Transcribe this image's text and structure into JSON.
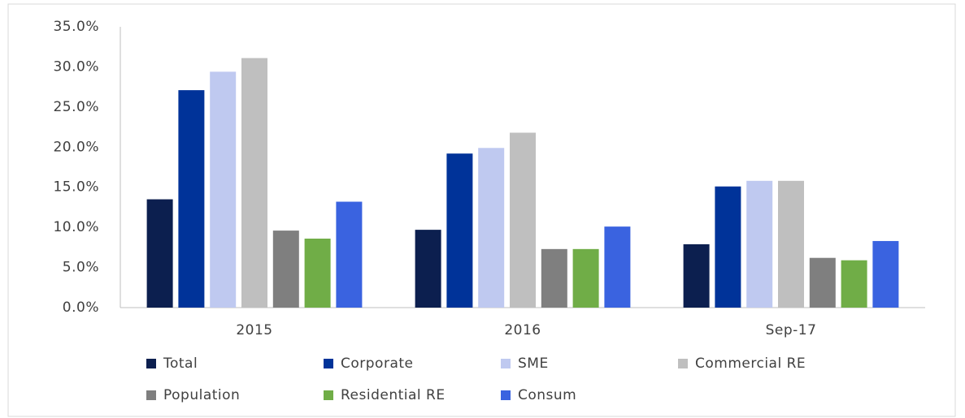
{
  "chart_data": {
    "type": "bar",
    "categories": [
      "2015",
      "2016",
      "Sep-17"
    ],
    "series": [
      {
        "name": "Total",
        "color": "#0c1f4f",
        "values": [
          13.5,
          9.7,
          7.9
        ]
      },
      {
        "name": "Corporate",
        "color": "#003399",
        "values": [
          27.1,
          19.2,
          15.1
        ]
      },
      {
        "name": "SME",
        "color": "#bfc9f0",
        "values": [
          29.4,
          19.9,
          15.8
        ]
      },
      {
        "name": "Commercial RE",
        "color": "#bfbfbf",
        "values": [
          31.1,
          21.8,
          15.8
        ]
      },
      {
        "name": "Population",
        "color": "#7f7f7f",
        "values": [
          9.6,
          7.3,
          6.2
        ]
      },
      {
        "name": "Residential RE",
        "color": "#70ad47",
        "values": [
          8.6,
          7.3,
          5.9
        ]
      },
      {
        "name": "Consum",
        "color": "#3a63e0",
        "values": [
          13.2,
          10.1,
          8.3
        ]
      }
    ],
    "ylim": [
      0,
      35
    ],
    "yticks": [
      {
        "value": 0,
        "label": "0.0%"
      },
      {
        "value": 5,
        "label": "5.0%"
      },
      {
        "value": 10,
        "label": "10.0%"
      },
      {
        "value": 15,
        "label": "15.0%"
      },
      {
        "value": 20,
        "label": "20.0%"
      },
      {
        "value": 25,
        "label": "25.0%"
      },
      {
        "value": 30,
        "label": "30.0%"
      },
      {
        "value": 35,
        "label": "35.0%"
      }
    ],
    "grid": false,
    "legend": "bottom"
  }
}
